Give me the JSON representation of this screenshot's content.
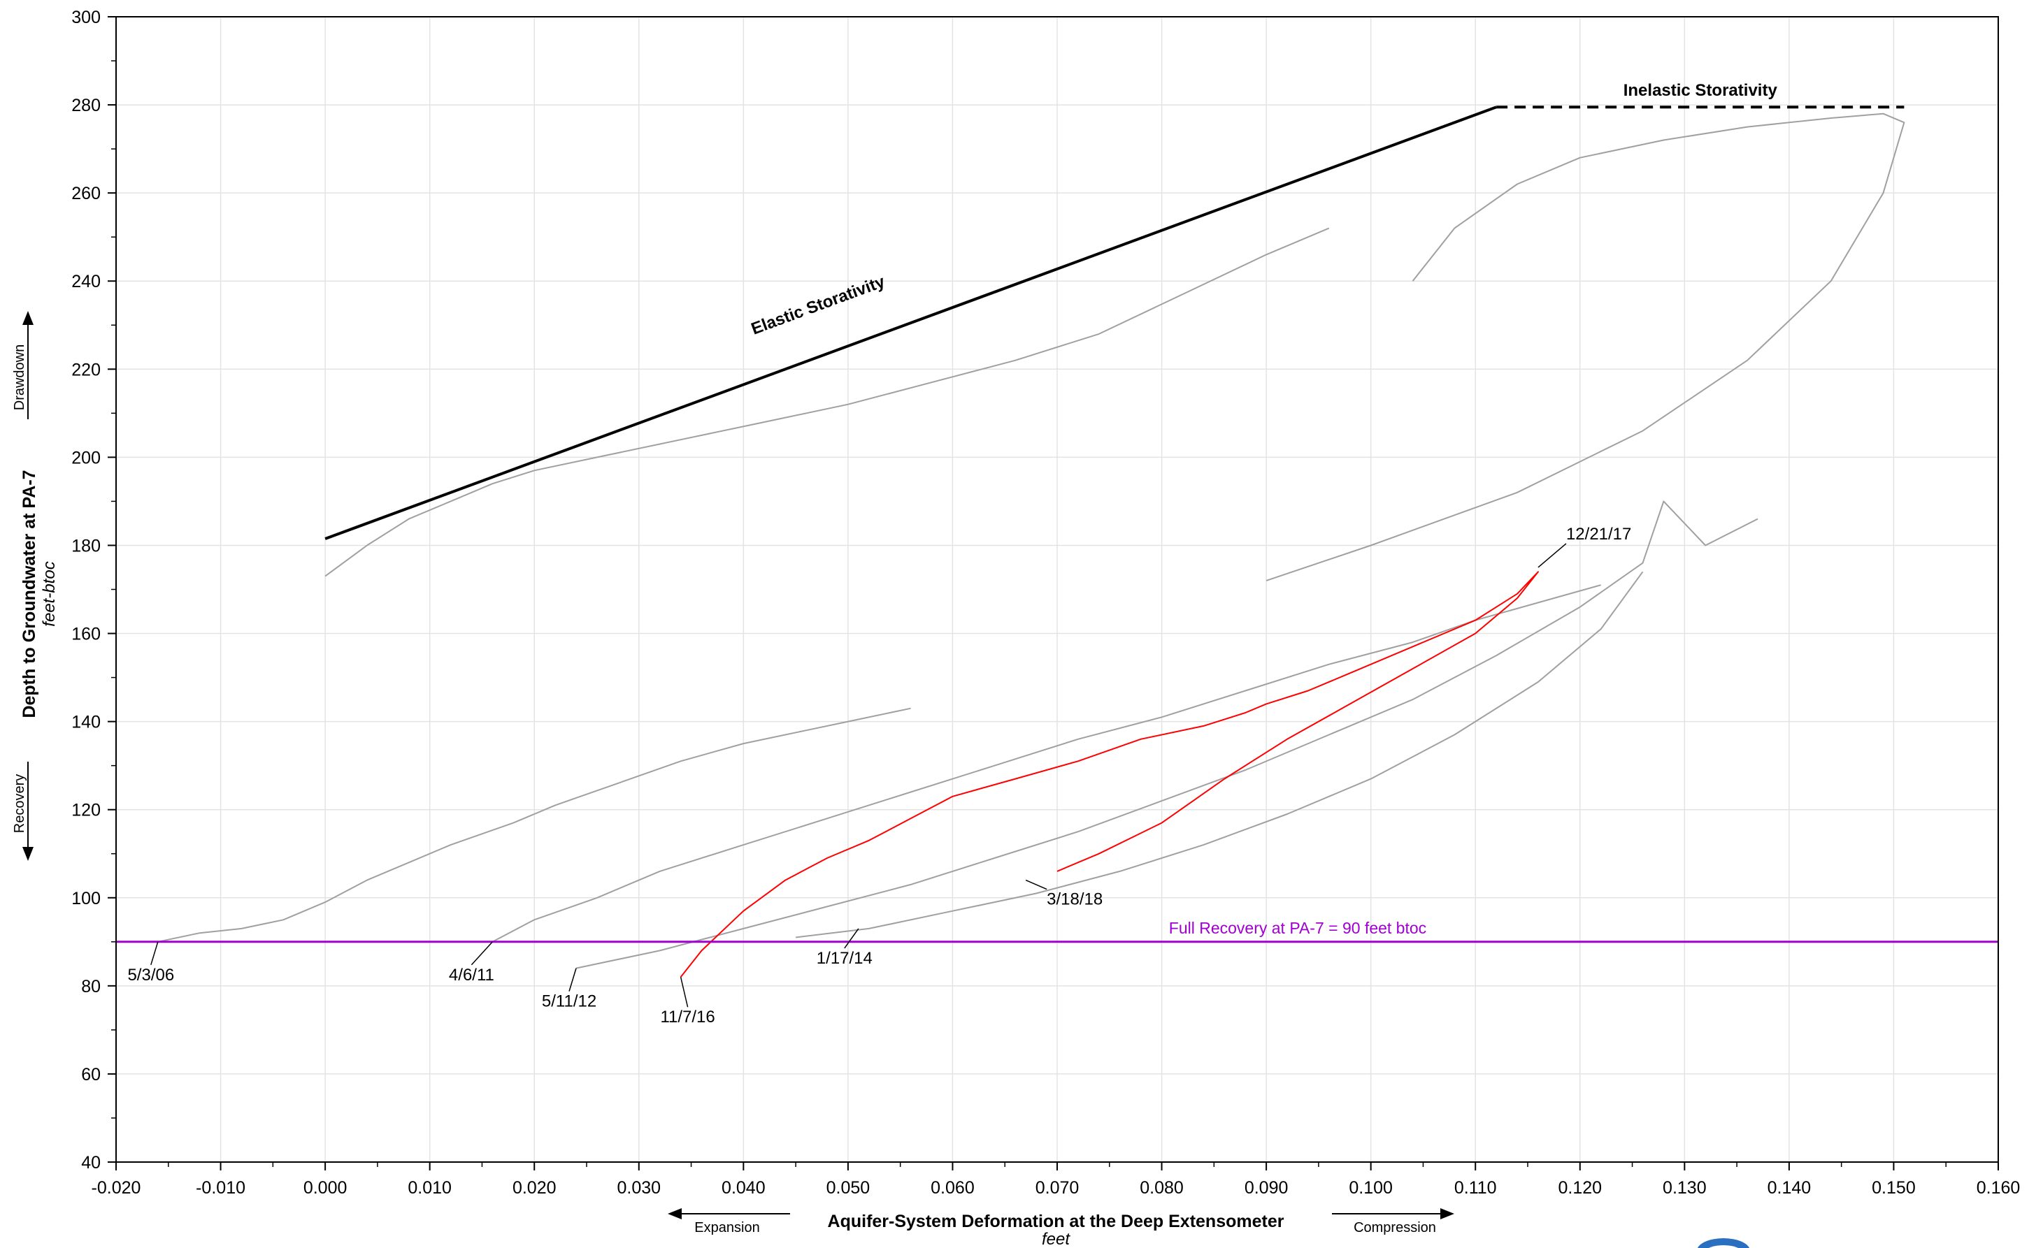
{
  "chart_data": {
    "type": "line",
    "xlabel": "Aquifer-System Deformation at the Deep Extensometer",
    "xunit": "feet",
    "ylabel": "Depth to Groundwater at PA-7",
    "yunit": "feet-btoc",
    "xlim": [
      -0.02,
      0.16
    ],
    "ylim": [
      40,
      300
    ],
    "x_ticks": [
      -0.02,
      -0.01,
      0.0,
      0.01,
      0.02,
      0.03,
      0.04,
      0.05,
      0.06,
      0.07,
      0.08,
      0.09,
      0.1,
      0.11,
      0.12,
      0.13,
      0.14,
      0.15,
      0.16
    ],
    "x_tick_labels": [
      "-0.020",
      "-0.010",
      "0.000",
      "0.010",
      "0.020",
      "0.030",
      "0.040",
      "0.050",
      "0.060",
      "0.070",
      "0.080",
      "0.090",
      "0.100",
      "0.110",
      "0.120",
      "0.130",
      "0.140",
      "0.150",
      "0.160"
    ],
    "y_ticks": [
      40,
      60,
      80,
      100,
      120,
      140,
      160,
      180,
      200,
      220,
      240,
      260,
      280,
      300
    ],
    "y_tick_labels": [
      "40",
      "60",
      "80",
      "100",
      "120",
      "140",
      "160",
      "180",
      "200",
      "220",
      "240",
      "260",
      "280",
      "300"
    ],
    "grid": true,
    "x_direction_labels": {
      "left": "Expansion",
      "right": "Compression"
    },
    "y_direction_labels": {
      "up": "Drawdown",
      "down": "Recovery"
    },
    "colors": {
      "history": "#a0a0a0",
      "recent": "#ff0000",
      "recovery": "#a000d0",
      "storativity": "#000000"
    },
    "reference_lines": [
      {
        "label": "Elastic Storativity",
        "style": "solid",
        "points": [
          [
            0.0,
            181.5
          ],
          [
            0.112,
            279.5
          ]
        ]
      },
      {
        "label": "Inelastic Storativity",
        "style": "dashed",
        "points": [
          [
            0.112,
            279.5
          ],
          [
            0.151,
            279.5
          ]
        ]
      },
      {
        "label": "Full Recovery at PA-7 = 90 feet btoc",
        "style": "solid",
        "y": 90
      }
    ],
    "series": [
      {
        "color": "#a0a0a0",
        "x": [
          -0.016,
          -0.012,
          -0.008,
          -0.004,
          0.0,
          0.004,
          0.008,
          0.012,
          0.018,
          0.022,
          0.028,
          0.034,
          0.04,
          0.046,
          0.05,
          0.054,
          0.056
        ],
        "y": [
          90,
          92,
          93,
          95,
          99,
          104,
          108,
          112,
          117,
          121,
          126,
          131,
          135,
          138,
          140,
          142,
          143
        ]
      },
      {
        "color": "#a0a0a0",
        "x": [
          0.0,
          0.004,
          0.008,
          0.012,
          0.016,
          0.02,
          0.026,
          0.034,
          0.042,
          0.05,
          0.058,
          0.066,
          0.074,
          0.082,
          0.09,
          0.096
        ],
        "y": [
          173,
          180,
          186,
          190,
          194,
          197,
          200,
          204,
          208,
          212,
          217,
          222,
          228,
          237,
          246,
          252
        ]
      },
      {
        "color": "#a0a0a0",
        "x": [
          0.016,
          0.02,
          0.026,
          0.032,
          0.04,
          0.048,
          0.056,
          0.064,
          0.072,
          0.08,
          0.088,
          0.096,
          0.104,
          0.11,
          0.116,
          0.122
        ],
        "y": [
          90,
          95,
          100,
          106,
          112,
          118,
          124,
          130,
          136,
          141,
          147,
          153,
          158,
          163,
          167,
          171
        ]
      },
      {
        "color": "#a0a0a0",
        "x": [
          0.024,
          0.032,
          0.04,
          0.048,
          0.056,
          0.064,
          0.072,
          0.08,
          0.088,
          0.096,
          0.104,
          0.112,
          0.12,
          0.126,
          0.128,
          0.132,
          0.137
        ],
        "y": [
          84,
          88,
          93,
          98,
          103,
          109,
          115,
          122,
          129,
          137,
          145,
          155,
          166,
          176,
          190,
          180,
          186
        ]
      },
      {
        "color": "#a0a0a0",
        "x": [
          0.045,
          0.052,
          0.06,
          0.068,
          0.076,
          0.084,
          0.092,
          0.1,
          0.108,
          0.116,
          0.122,
          0.126
        ],
        "y": [
          91,
          93,
          97,
          101,
          106,
          112,
          119,
          127,
          137,
          149,
          161,
          174
        ]
      },
      {
        "color": "#a0a0a0",
        "x": [
          0.104,
          0.108,
          0.114,
          0.12,
          0.128,
          0.136,
          0.144,
          0.149,
          0.151,
          0.149,
          0.144,
          0.136,
          0.126,
          0.114,
          0.1,
          0.09
        ],
        "y": [
          240,
          252,
          262,
          268,
          272,
          275,
          277,
          278,
          276,
          260,
          240,
          222,
          206,
          192,
          180,
          172
        ]
      }
    ],
    "recent_series": {
      "color": "#ff0000",
      "x": [
        0.034,
        0.036,
        0.04,
        0.044,
        0.048,
        0.052,
        0.056,
        0.06,
        0.066,
        0.072,
        0.078,
        0.084,
        0.088,
        0.09,
        0.094,
        0.098,
        0.104,
        0.11,
        0.114,
        0.116,
        0.114,
        0.11,
        0.104,
        0.098,
        0.092,
        0.086,
        0.08,
        0.074,
        0.07
      ],
      "y": [
        82,
        88,
        97,
        104,
        109,
        113,
        118,
        123,
        127,
        131,
        136,
        139,
        142,
        144,
        147,
        151,
        157,
        163,
        169,
        174,
        168,
        160,
        152,
        144,
        136,
        127,
        117,
        110,
        106
      ]
    },
    "date_annotations": [
      {
        "label": "5/3/06",
        "x": -0.016,
        "y": 90
      },
      {
        "label": "4/6/11",
        "x": 0.016,
        "y": 90
      },
      {
        "label": "5/11/12",
        "x": 0.024,
        "y": 84
      },
      {
        "label": "11/7/16",
        "x": 0.034,
        "y": 82
      },
      {
        "label": "1/17/14",
        "x": 0.051,
        "y": 93
      },
      {
        "label": "3/18/18",
        "x": 0.067,
        "y": 104
      },
      {
        "label": "12/21/17",
        "x": 0.116,
        "y": 175
      }
    ]
  }
}
